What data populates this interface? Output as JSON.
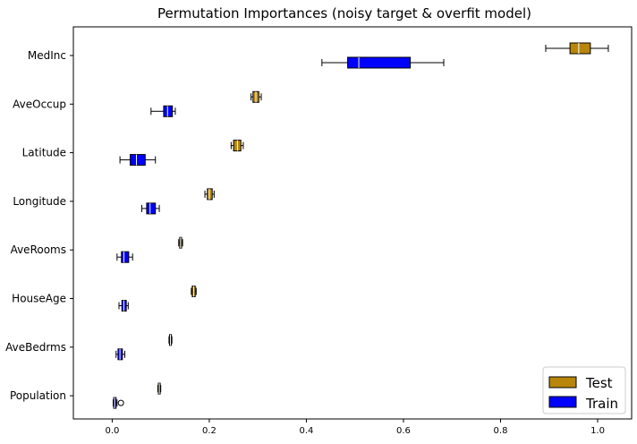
{
  "chart_data": {
    "type": "boxplot",
    "orientation": "horizontal",
    "title": "Permutation Importances (noisy target & overfit model)",
    "xlabel": "",
    "ylabel": "",
    "xlim": [
      -0.08,
      1.07
    ],
    "xticks": [
      0.0,
      0.2,
      0.4,
      0.6,
      0.8,
      1.0
    ],
    "xtick_labels": [
      "0.0",
      "0.2",
      "0.4",
      "0.6",
      "0.8",
      "1.0"
    ],
    "categories": [
      "MedInc",
      "AveOccup",
      "Latitude",
      "Longitude",
      "AveRooms",
      "HouseAge",
      "AveBedrms",
      "Population"
    ],
    "legend": {
      "placement": "lower-right"
    },
    "series": [
      {
        "name": "Test",
        "color": "#b8860b",
        "boxes": [
          {
            "whislo": 0.893,
            "q1": 0.943,
            "med": 0.961,
            "q3": 0.985,
            "whishi": 1.022,
            "fliers": []
          },
          {
            "whislo": 0.286,
            "q1": 0.29,
            "med": 0.296,
            "q3": 0.302,
            "whishi": 0.307,
            "fliers": []
          },
          {
            "whislo": 0.245,
            "q1": 0.25,
            "med": 0.258,
            "q3": 0.265,
            "whishi": 0.27,
            "fliers": []
          },
          {
            "whislo": 0.191,
            "q1": 0.196,
            "med": 0.2,
            "q3": 0.206,
            "whishi": 0.21,
            "fliers": []
          },
          {
            "whislo": 0.137,
            "q1": 0.139,
            "med": 0.141,
            "q3": 0.143,
            "whishi": 0.145,
            "fliers": []
          },
          {
            "whislo": 0.163,
            "q1": 0.165,
            "med": 0.168,
            "q3": 0.171,
            "whishi": 0.173,
            "fliers": []
          },
          {
            "whislo": 0.117,
            "q1": 0.118,
            "med": 0.12,
            "q3": 0.122,
            "whishi": 0.123,
            "fliers": []
          },
          {
            "whislo": 0.094,
            "q1": 0.095,
            "med": 0.097,
            "q3": 0.099,
            "whishi": 0.1,
            "fliers": []
          }
        ]
      },
      {
        "name": "Train",
        "color": "#0000ff",
        "boxes": [
          {
            "whislo": 0.432,
            "q1": 0.485,
            "med": 0.508,
            "q3": 0.614,
            "whishi": 0.683,
            "fliers": []
          },
          {
            "whislo": 0.08,
            "q1": 0.106,
            "med": 0.114,
            "q3": 0.124,
            "whishi": 0.13,
            "fliers": []
          },
          {
            "whislo": 0.016,
            "q1": 0.037,
            "med": 0.05,
            "q3": 0.068,
            "whishi": 0.089,
            "fliers": []
          },
          {
            "whislo": 0.061,
            "q1": 0.071,
            "med": 0.078,
            "q3": 0.089,
            "whishi": 0.097,
            "fliers": []
          },
          {
            "whislo": 0.01,
            "q1": 0.019,
            "med": 0.024,
            "q3": 0.034,
            "whishi": 0.042,
            "fliers": []
          },
          {
            "whislo": 0.014,
            "q1": 0.02,
            "med": 0.024,
            "q3": 0.029,
            "whishi": 0.033,
            "fliers": []
          },
          {
            "whislo": 0.008,
            "q1": 0.012,
            "med": 0.016,
            "q3": 0.021,
            "whishi": 0.026,
            "fliers": []
          },
          {
            "whislo": 0.002,
            "q1": 0.003,
            "med": 0.005,
            "q3": 0.008,
            "whishi": 0.01,
            "fliers": [
              0.018
            ]
          }
        ]
      }
    ]
  }
}
